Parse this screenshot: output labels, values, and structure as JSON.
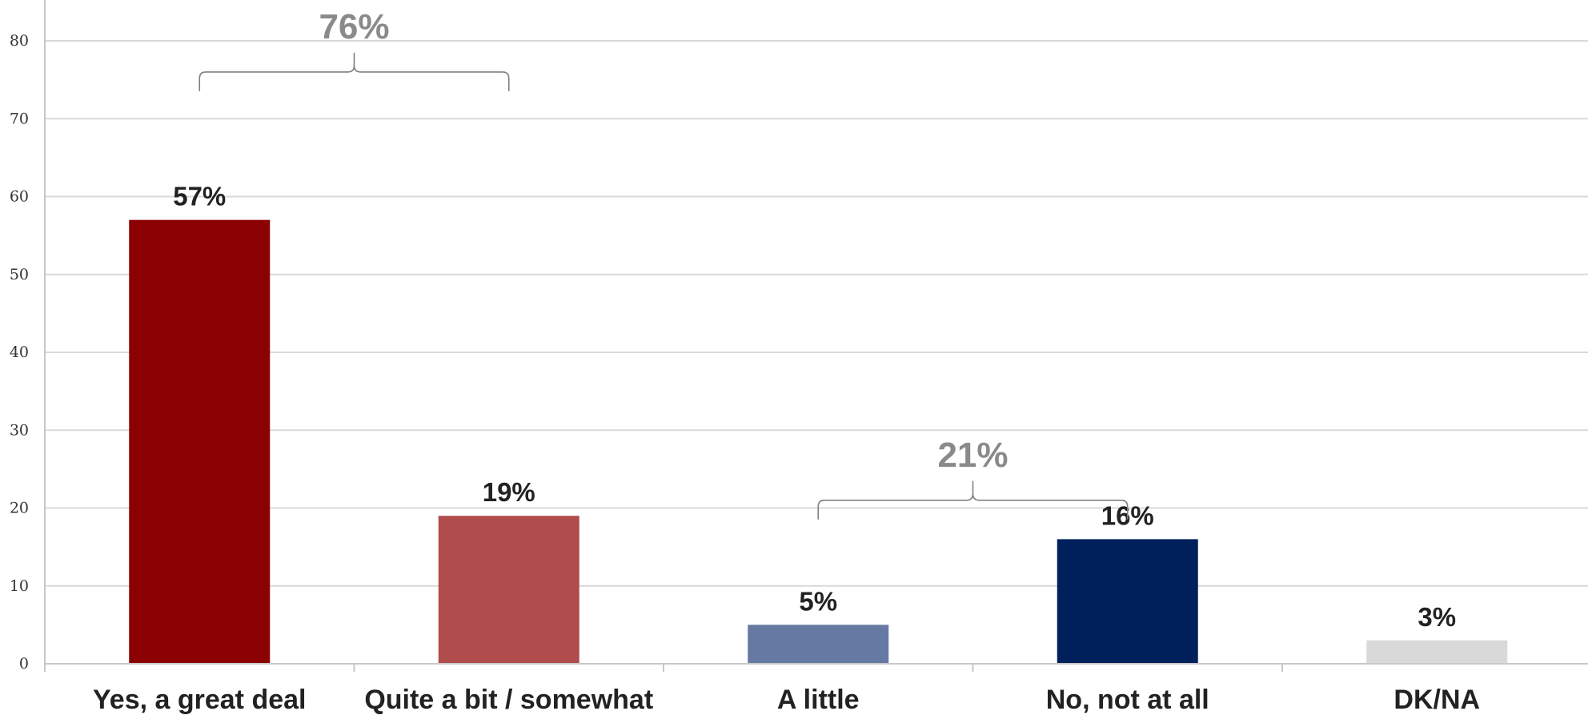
{
  "chart_data": {
    "type": "bar",
    "categories": [
      "Yes, a great deal",
      "Quite a bit / somewhat",
      "A little",
      "No, not at all",
      "DK/NA"
    ],
    "values": [
      57,
      19,
      5,
      16,
      3
    ],
    "data_labels": [
      "57%",
      "19%",
      "5%",
      "16%",
      "3%"
    ],
    "colors": [
      "#8b0000",
      "#b04c4c",
      "#6679a3",
      "#00205b",
      "#d9d9d9"
    ],
    "ylim": [
      0,
      80
    ],
    "yticks": [
      0,
      10,
      20,
      30,
      40,
      50,
      60,
      70,
      80
    ],
    "grid": true,
    "title": "",
    "xlabel": "",
    "ylabel": "",
    "groups": [
      {
        "label": "76%",
        "from": 0,
        "to": 1,
        "value": 76
      },
      {
        "label": "21%",
        "from": 2,
        "to": 3,
        "value": 21
      }
    ]
  }
}
